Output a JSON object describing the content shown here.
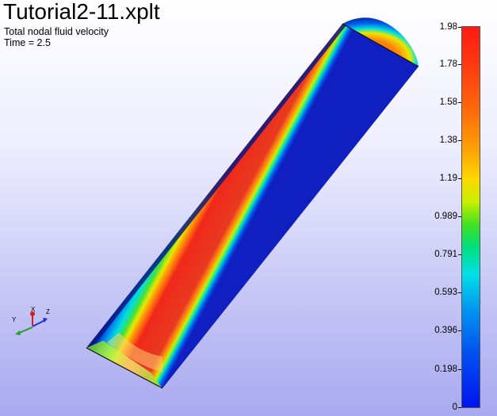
{
  "window": {
    "title": "Tutorial2-11.xplt",
    "subtitle": "Total nodal fluid velocity",
    "time_label": "Time = 2.5"
  },
  "axis_triad": {
    "labels": [
      "Y",
      "X",
      "Z"
    ],
    "colors": {
      "x": "#d02020",
      "y": "#20a020",
      "z": "#2030d0"
    }
  },
  "colorbar": {
    "ticks": [
      "1.98",
      "1.78",
      "1.58",
      "1.38",
      "1.19",
      "0.989",
      "0.791",
      "0.593",
      "0.396",
      "0.198",
      "0"
    ],
    "colors": {
      "max": "#ff1a14",
      "mid": "#40e020",
      "min": "#0014f0"
    }
  }
}
